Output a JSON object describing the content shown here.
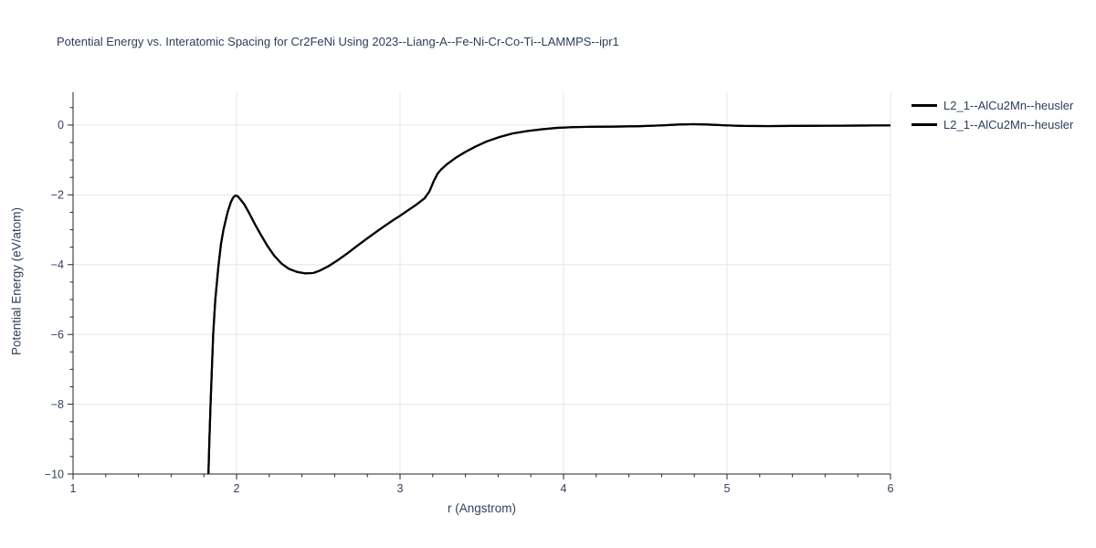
{
  "title": "Potential Energy vs. Interatomic Spacing for Cr2FeNi Using 2023--Liang-A--Fe-Ni-Cr-Co-Ti--LAMMPS--ipr1",
  "axes": {
    "xlabel": "r (Angstrom)",
    "ylabel": "Potential Energy (eV/atom)"
  },
  "legend": {
    "position": "top-right-outside",
    "entries": [
      {
        "label": "L2_1--AlCu2Mn--heusler",
        "color": "#000000"
      },
      {
        "label": "L2_1--AlCu2Mn--heusler",
        "color": "#000000"
      }
    ]
  },
  "colors": {
    "title_text": "#2e3d59",
    "tick_text": "#33415c",
    "grid": "#e6e6e6",
    "axis": "#262626",
    "line": "#000000",
    "background": "#ffffff"
  },
  "chart_data": {
    "type": "line",
    "title": "Potential Energy vs. Interatomic Spacing for Cr2FeNi Using 2023--Liang-A--Fe-Ni-Cr-Co-Ti--LAMMPS--ipr1",
    "xlabel": "r (Angstrom)",
    "ylabel": "Potential Energy (eV/atom)",
    "xlim": [
      1,
      6
    ],
    "ylim": [
      -10,
      0.94
    ],
    "grid": true,
    "legend_position": "top-right-outside",
    "xticks": {
      "values": [
        1,
        2,
        3,
        4,
        5,
        6
      ],
      "labels": [
        "1",
        "2",
        "3",
        "4",
        "5",
        "6"
      ]
    },
    "yticks": {
      "values": [
        0,
        -2,
        -4,
        -6,
        -8,
        -10
      ],
      "labels": [
        "0",
        "−2",
        "−4",
        "−6",
        "−8",
        "−10"
      ]
    },
    "x_minor_step": 0.2,
    "y_minor_step": 0.5,
    "series": [
      {
        "name": "L2_1--AlCu2Mn--heusler",
        "color": "#000000",
        "points": [
          [
            1.828,
            -10
          ],
          [
            1.834,
            -9
          ],
          [
            1.841,
            -8
          ],
          [
            1.849,
            -7
          ],
          [
            1.857,
            -6
          ],
          [
            1.87,
            -5
          ],
          [
            1.889,
            -4.05
          ],
          [
            1.905,
            -3.4
          ],
          [
            1.92,
            -3.0
          ],
          [
            1.945,
            -2.5
          ],
          [
            1.966,
            -2.2
          ],
          [
            1.979,
            -2.08
          ],
          [
            1.992,
            -2.02
          ],
          [
            2.007,
            -2.04
          ],
          [
            2.022,
            -2.12
          ],
          [
            2.047,
            -2.27
          ],
          [
            2.077,
            -2.52
          ],
          [
            2.112,
            -2.84
          ],
          [
            2.147,
            -3.13
          ],
          [
            2.187,
            -3.45
          ],
          [
            2.23,
            -3.74
          ],
          [
            2.275,
            -3.97
          ],
          [
            2.32,
            -4.12
          ],
          [
            2.37,
            -4.21
          ],
          [
            2.42,
            -4.25
          ],
          [
            2.47,
            -4.24
          ],
          [
            2.51,
            -4.17
          ],
          [
            2.56,
            -4.05
          ],
          [
            2.62,
            -3.87
          ],
          [
            2.68,
            -3.67
          ],
          [
            2.73,
            -3.49
          ],
          [
            2.79,
            -3.28
          ],
          [
            2.84,
            -3.11
          ],
          [
            2.9,
            -2.91
          ],
          [
            2.96,
            -2.72
          ],
          [
            3.0,
            -2.6
          ],
          [
            3.05,
            -2.44
          ],
          [
            3.1,
            -2.28
          ],
          [
            3.15,
            -2.1
          ],
          [
            3.18,
            -1.9
          ],
          [
            3.205,
            -1.62
          ],
          [
            3.23,
            -1.39
          ],
          [
            3.25,
            -1.28
          ],
          [
            3.29,
            -1.11
          ],
          [
            3.34,
            -0.94
          ],
          [
            3.4,
            -0.77
          ],
          [
            3.46,
            -0.62
          ],
          [
            3.53,
            -0.47
          ],
          [
            3.61,
            -0.34
          ],
          [
            3.69,
            -0.24
          ],
          [
            3.78,
            -0.17
          ],
          [
            3.87,
            -0.12
          ],
          [
            3.96,
            -0.08
          ],
          [
            4.06,
            -0.06
          ],
          [
            4.18,
            -0.05
          ],
          [
            4.3,
            -0.045
          ],
          [
            4.45,
            -0.035
          ],
          [
            4.6,
            -0.01
          ],
          [
            4.7,
            0.015
          ],
          [
            4.8,
            0.025
          ],
          [
            4.9,
            0.01
          ],
          [
            5.0,
            -0.01
          ],
          [
            5.1,
            -0.025
          ],
          [
            5.25,
            -0.03
          ],
          [
            5.4,
            -0.025
          ],
          [
            5.6,
            -0.02
          ],
          [
            5.8,
            -0.015
          ],
          [
            6.0,
            -0.01
          ]
        ]
      },
      {
        "name": "L2_1--AlCu2Mn--heusler",
        "color": "#000000",
        "points": [
          [
            1.828,
            -10
          ],
          [
            1.834,
            -9
          ],
          [
            1.841,
            -8
          ],
          [
            1.849,
            -7
          ],
          [
            1.857,
            -6
          ],
          [
            1.87,
            -5
          ],
          [
            1.889,
            -4.05
          ],
          [
            1.905,
            -3.4
          ],
          [
            1.92,
            -3.0
          ],
          [
            1.945,
            -2.5
          ],
          [
            1.966,
            -2.2
          ],
          [
            1.979,
            -2.08
          ],
          [
            1.992,
            -2.02
          ],
          [
            2.007,
            -2.04
          ],
          [
            2.022,
            -2.12
          ],
          [
            2.047,
            -2.27
          ],
          [
            2.077,
            -2.52
          ],
          [
            2.112,
            -2.84
          ],
          [
            2.147,
            -3.13
          ],
          [
            2.187,
            -3.45
          ],
          [
            2.23,
            -3.74
          ],
          [
            2.275,
            -3.97
          ],
          [
            2.32,
            -4.12
          ],
          [
            2.37,
            -4.21
          ],
          [
            2.42,
            -4.25
          ],
          [
            2.47,
            -4.24
          ],
          [
            2.51,
            -4.17
          ],
          [
            2.56,
            -4.05
          ],
          [
            2.62,
            -3.87
          ],
          [
            2.68,
            -3.67
          ],
          [
            2.73,
            -3.49
          ],
          [
            2.79,
            -3.28
          ],
          [
            2.84,
            -3.11
          ],
          [
            2.9,
            -2.91
          ],
          [
            2.96,
            -2.72
          ],
          [
            3.0,
            -2.6
          ],
          [
            3.05,
            -2.44
          ],
          [
            3.1,
            -2.28
          ],
          [
            3.15,
            -2.1
          ],
          [
            3.18,
            -1.9
          ],
          [
            3.205,
            -1.62
          ],
          [
            3.23,
            -1.39
          ],
          [
            3.25,
            -1.28
          ],
          [
            3.29,
            -1.11
          ],
          [
            3.34,
            -0.94
          ],
          [
            3.4,
            -0.77
          ],
          [
            3.46,
            -0.62
          ],
          [
            3.53,
            -0.47
          ],
          [
            3.61,
            -0.34
          ],
          [
            3.69,
            -0.24
          ],
          [
            3.78,
            -0.17
          ],
          [
            3.87,
            -0.12
          ],
          [
            3.96,
            -0.08
          ],
          [
            4.06,
            -0.06
          ],
          [
            4.18,
            -0.05
          ],
          [
            4.3,
            -0.045
          ],
          [
            4.45,
            -0.035
          ],
          [
            4.6,
            -0.01
          ],
          [
            4.7,
            0.015
          ],
          [
            4.8,
            0.025
          ],
          [
            4.9,
            0.01
          ],
          [
            5.0,
            -0.01
          ],
          [
            5.1,
            -0.025
          ],
          [
            5.25,
            -0.03
          ],
          [
            5.4,
            -0.025
          ],
          [
            5.6,
            -0.02
          ],
          [
            5.8,
            -0.015
          ],
          [
            6.0,
            -0.01
          ]
        ]
      }
    ]
  }
}
